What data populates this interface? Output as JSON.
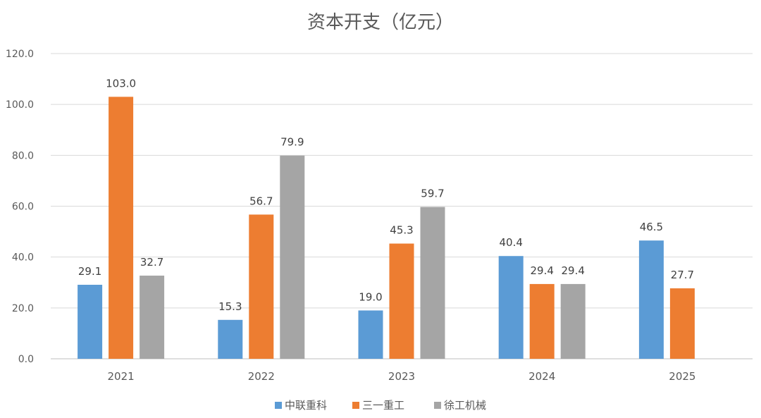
{
  "chart_data": {
    "type": "bar",
    "title": "资本开支（亿元）",
    "categories": [
      "2021",
      "2022",
      "2023",
      "2024",
      "2025"
    ],
    "series": [
      {
        "name": "中联重科",
        "color": "#5b9bd5",
        "values": [
          29.1,
          15.3,
          19.0,
          40.4,
          46.5
        ],
        "labels": [
          "29.1",
          "15.3",
          "19.0",
          "40.4",
          "46.5"
        ]
      },
      {
        "name": "三一重工",
        "color": "#ed7d31",
        "values": [
          103.0,
          56.7,
          45.3,
          29.4,
          27.7
        ],
        "labels": [
          "103.0",
          "56.7",
          "45.3",
          "29.4",
          "27.7"
        ]
      },
      {
        "name": "徐工机械",
        "color": "#a5a5a5",
        "values": [
          32.7,
          79.9,
          59.7,
          29.4,
          null
        ],
        "labels": [
          "32.7",
          "79.9",
          "59.7",
          "29.4",
          ""
        ]
      }
    ],
    "ylim": [
      0,
      120
    ],
    "yticks": [
      "0.0",
      "20.0",
      "40.0",
      "60.0",
      "80.0",
      "100.0",
      "120.0"
    ],
    "grid": true,
    "legend": "bottom"
  }
}
